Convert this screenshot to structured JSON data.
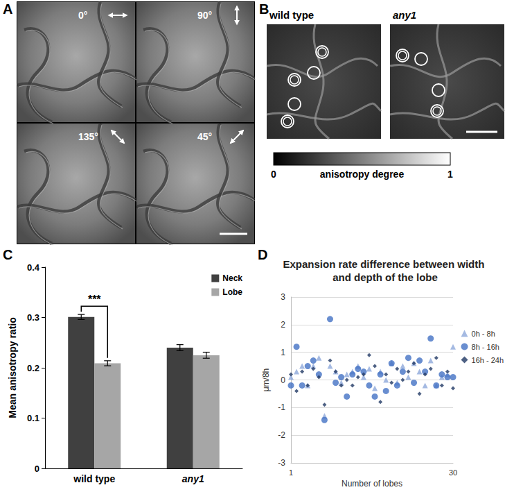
{
  "panels": {
    "A": {
      "panel_label": "A",
      "angles": [
        "0°",
        "90°",
        "135°",
        "45°"
      ]
    },
    "B": {
      "panel_label": "B",
      "samples": [
        "wild type",
        "any1"
      ],
      "colorbar": {
        "label": "anisotropy degree",
        "range": [
          0,
          1
        ],
        "ticks": [
          0,
          1
        ]
      }
    }
  },
  "chart_data": [
    {
      "panel_label": "C",
      "type": "bar",
      "categories": [
        "wild type",
        "any1"
      ],
      "ylabel": "Mean anisotropy ratio",
      "ylim": [
        0,
        0.4
      ],
      "yticks": [
        0,
        0.1,
        0.2,
        0.3,
        0.4
      ],
      "grid": false,
      "legend": "top-right",
      "series": [
        {
          "name": "Neck",
          "color": "#404040",
          "values": [
            0.301,
            0.24
          ],
          "errors": [
            0.005,
            0.006
          ]
        },
        {
          "name": "Lobe",
          "color": "#a6a6a6",
          "values": [
            0.209,
            0.225
          ],
          "errors": [
            0.005,
            0.006
          ]
        }
      ],
      "significance": {
        "text": "***",
        "category": "wild type"
      }
    },
    {
      "panel_label": "D",
      "type": "scatter",
      "title": "Expansion rate difference between width and depth of the lobe",
      "xlabel": "Number of lobes",
      "ylabel": "μm/8h",
      "x": [
        1,
        2,
        3,
        4,
        5,
        6,
        7,
        8,
        9,
        10,
        11,
        12,
        13,
        14,
        15,
        16,
        17,
        18,
        19,
        20,
        21,
        22,
        23,
        24,
        25,
        26,
        27,
        28,
        29,
        30
      ],
      "xlim": [
        1,
        30
      ],
      "xticks": [
        1,
        30
      ],
      "ylim": [
        -3,
        3
      ],
      "yticks": [
        -3,
        -2,
        -1,
        0,
        1,
        2,
        3
      ],
      "grid": true,
      "legend": "right",
      "series": [
        {
          "name": "0h - 8h",
          "color": "#8ea9db",
          "marker": "triangle",
          "values": [
            0.1,
            0.3,
            0.5,
            -0.2,
            0.5,
            0.8,
            -1.3,
            0.5,
            0.3,
            -0.1,
            0.2,
            0.3,
            0.5,
            0.1,
            0.4,
            -0.3,
            0.3,
            0.0,
            0.6,
            -0.1,
            0.5,
            0.1,
            0.6,
            0.3,
            -0.2,
            0.7,
            -0.2,
            0.1,
            0.2,
            1.2
          ]
        },
        {
          "name": "8h - 16h",
          "color": "#4472c4",
          "marker": "circle",
          "values": [
            -0.2,
            1.2,
            -0.2,
            0.5,
            0.7,
            0.2,
            -1.45,
            2.2,
            -0.1,
            0.1,
            -0.6,
            0.2,
            0.4,
            0.3,
            -0.2,
            -0.6,
            0.2,
            -0.4,
            0.6,
            -0.2,
            0.3,
            0.8,
            -0.1,
            0.7,
            0.3,
            1.5,
            -0.2,
            0.2,
            0.1,
            0.1
          ]
        },
        {
          "name": "16h - 24h",
          "color": "#203864",
          "marker": "diamond",
          "values": [
            0.2,
            -0.4,
            0.3,
            -0.2,
            0.4,
            0.1,
            -0.9,
            0.7,
            0.3,
            -0.2,
            0.0,
            -0.2,
            0.1,
            0.2,
            0.9,
            0.5,
            -0.8,
            0.2,
            -0.1,
            0.4,
            0.0,
            0.3,
            0.6,
            -0.5,
            0.2,
            0.4,
            0.8,
            -0.2,
            0.3,
            -0.3
          ]
        }
      ]
    }
  ]
}
